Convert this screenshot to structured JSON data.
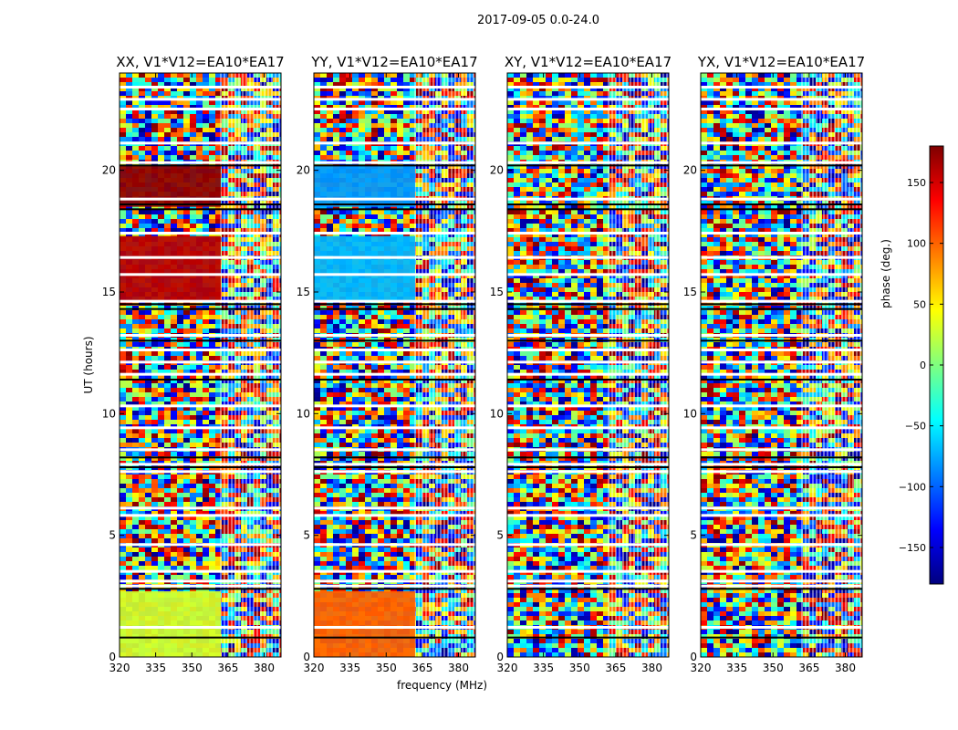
{
  "figure": {
    "suptitle": "2017-09-05 0.0-24.0",
    "colormap_stops": [
      "#00007f",
      "#0000ff",
      "#007fff",
      "#00ffff",
      "#7fff7f",
      "#ffff00",
      "#ff7f00",
      "#ff0000",
      "#7f0000"
    ]
  },
  "chart_data": [
    {
      "type": "heatmap",
      "title": "XX, V1*V12=EA10*EA17",
      "xlabel": "",
      "ylabel": "UT (hours)",
      "x_range_mhz": [
        320,
        387
      ],
      "y_range_hours": [
        0,
        24
      ],
      "xticks": [
        320,
        335,
        350,
        365,
        380
      ],
      "yticks": [
        0,
        5,
        10,
        15,
        20
      ],
      "z_quantity": "phase (deg.)",
      "description_blocks": [
        {
          "y_from": 18.5,
          "y_to": 20.2,
          "x_to": 362,
          "phase": 175
        },
        {
          "y_from": 14.6,
          "y_to": 17.3,
          "x_to": 362,
          "phase": 160
        },
        {
          "y_from": 0.0,
          "y_to": 2.7,
          "x_to": 362,
          "phase": 30
        }
      ]
    },
    {
      "type": "heatmap",
      "title": "YY, V1*V12=EA10*EA17",
      "xlabel": "frequency (MHz)",
      "ylabel": "",
      "x_range_mhz": [
        320,
        387
      ],
      "y_range_hours": [
        0,
        24
      ],
      "xticks": [
        320,
        335,
        350,
        365,
        380
      ],
      "yticks": [
        0,
        5,
        10,
        15,
        20
      ],
      "z_quantity": "phase (deg.)",
      "description_blocks": [
        {
          "y_from": 18.5,
          "y_to": 20.2,
          "x_to": 362,
          "phase": -80
        },
        {
          "y_from": 14.6,
          "y_to": 17.3,
          "x_to": 362,
          "phase": -70
        },
        {
          "y_from": 0.0,
          "y_to": 2.7,
          "x_to": 362,
          "phase": 100
        }
      ]
    },
    {
      "type": "heatmap",
      "title": "XY, V1*V12=EA10*EA17",
      "xlabel": "",
      "ylabel": "",
      "x_range_mhz": [
        320,
        387
      ],
      "y_range_hours": [
        0,
        24
      ],
      "xticks": [
        320,
        335,
        350,
        365,
        380
      ],
      "yticks": [
        0,
        5,
        10,
        15,
        20
      ],
      "z_quantity": "phase (deg.)",
      "description_blocks": []
    },
    {
      "type": "heatmap",
      "title": "YX, V1*V12=EA10*EA17",
      "xlabel": "",
      "ylabel": "",
      "x_range_mhz": [
        320,
        387
      ],
      "y_range_hours": [
        0,
        24
      ],
      "xticks": [
        320,
        335,
        350,
        365,
        380
      ],
      "yticks": [
        0,
        5,
        10,
        15,
        20
      ],
      "z_quantity": "phase (deg.)",
      "description_blocks": []
    }
  ],
  "colorbar": {
    "label": "phase (deg.)",
    "range": [
      -180,
      180
    ],
    "ticks": [
      150,
      100,
      50,
      0,
      -50,
      -100,
      -150
    ],
    "tick_labels": [
      "150",
      "100",
      "50",
      "0",
      "−50",
      "−100",
      "−150"
    ]
  }
}
